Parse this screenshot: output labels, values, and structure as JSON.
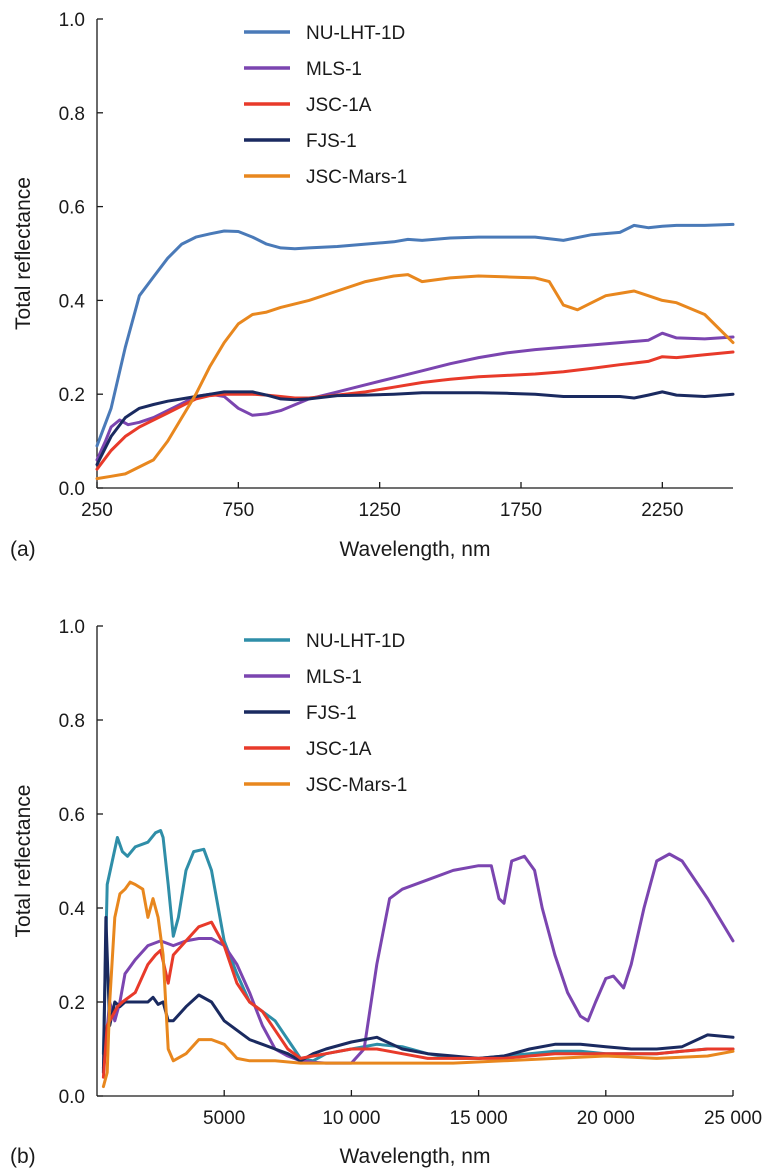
{
  "chart_data": [
    {
      "type": "line",
      "panel_label": "(a)",
      "xlabel": "Wavelength, nm",
      "ylabel": "Total reflectance",
      "xlim": [
        250,
        2500
      ],
      "ylim": [
        0,
        1.0
      ],
      "xticks": [
        250,
        750,
        1250,
        1750,
        2250
      ],
      "xtick_labels": [
        "250",
        "750",
        "1250",
        "1750",
        "2250"
      ],
      "yticks": [
        0,
        0.2,
        0.4,
        0.6,
        0.8,
        1.0
      ],
      "ytick_labels": [
        "0.0",
        "0.2",
        "0.4",
        "0.6",
        "0.8",
        "1.0"
      ],
      "grid": false,
      "legend_position": "top-center",
      "series": [
        {
          "name": "NU-LHT-1D",
          "color": "#4a7ab8",
          "x": [
            250,
            300,
            350,
            400,
            450,
            500,
            550,
            600,
            650,
            700,
            750,
            800,
            850,
            900,
            950,
            1000,
            1100,
            1200,
            1300,
            1350,
            1400,
            1500,
            1600,
            1700,
            1800,
            1900,
            2000,
            2100,
            2150,
            2200,
            2250,
            2300,
            2400,
            2500
          ],
          "y": [
            0.09,
            0.17,
            0.3,
            0.41,
            0.45,
            0.49,
            0.52,
            0.535,
            0.542,
            0.548,
            0.547,
            0.535,
            0.52,
            0.512,
            0.51,
            0.512,
            0.515,
            0.52,
            0.525,
            0.53,
            0.528,
            0.533,
            0.535,
            0.535,
            0.535,
            0.528,
            0.54,
            0.545,
            0.56,
            0.555,
            0.558,
            0.56,
            0.56,
            0.562
          ]
        },
        {
          "name": "MLS-1",
          "color": "#7b45b0",
          "x": [
            250,
            280,
            300,
            330,
            360,
            400,
            450,
            500,
            550,
            600,
            650,
            700,
            750,
            800,
            850,
            900,
            1000,
            1100,
            1200,
            1300,
            1400,
            1500,
            1600,
            1700,
            1800,
            1900,
            2000,
            2100,
            2200,
            2250,
            2300,
            2400,
            2500
          ],
          "y": [
            0.06,
            0.1,
            0.13,
            0.145,
            0.135,
            0.14,
            0.15,
            0.165,
            0.18,
            0.195,
            0.2,
            0.195,
            0.17,
            0.155,
            0.158,
            0.165,
            0.19,
            0.205,
            0.22,
            0.235,
            0.25,
            0.265,
            0.278,
            0.288,
            0.295,
            0.3,
            0.305,
            0.31,
            0.315,
            0.33,
            0.32,
            0.318,
            0.322
          ]
        },
        {
          "name": "JSC-1A",
          "color": "#e83a2a",
          "x": [
            250,
            300,
            350,
            400,
            450,
            500,
            550,
            600,
            650,
            700,
            750,
            800,
            850,
            900,
            950,
            1000,
            1100,
            1200,
            1300,
            1400,
            1500,
            1600,
            1700,
            1800,
            1900,
            2000,
            2100,
            2200,
            2250,
            2300,
            2400,
            2500
          ],
          "y": [
            0.04,
            0.08,
            0.11,
            0.13,
            0.145,
            0.16,
            0.175,
            0.19,
            0.197,
            0.2,
            0.2,
            0.2,
            0.198,
            0.195,
            0.192,
            0.192,
            0.198,
            0.205,
            0.215,
            0.225,
            0.232,
            0.237,
            0.24,
            0.243,
            0.248,
            0.255,
            0.263,
            0.27,
            0.28,
            0.278,
            0.284,
            0.29
          ]
        },
        {
          "name": "FJS-1",
          "color": "#1a2a60",
          "x": [
            250,
            300,
            350,
            400,
            450,
            500,
            550,
            600,
            650,
            700,
            750,
            800,
            850,
            900,
            950,
            1000,
            1100,
            1200,
            1300,
            1400,
            1500,
            1600,
            1700,
            1800,
            1900,
            2000,
            2100,
            2150,
            2200,
            2250,
            2300,
            2400,
            2500
          ],
          "y": [
            0.05,
            0.11,
            0.15,
            0.17,
            0.178,
            0.185,
            0.19,
            0.195,
            0.2,
            0.205,
            0.205,
            0.205,
            0.198,
            0.19,
            0.188,
            0.19,
            0.197,
            0.198,
            0.2,
            0.203,
            0.203,
            0.203,
            0.202,
            0.2,
            0.195,
            0.195,
            0.195,
            0.192,
            0.198,
            0.205,
            0.198,
            0.195,
            0.2
          ]
        },
        {
          "name": "JSC-Mars-1",
          "color": "#e8871e",
          "x": [
            250,
            300,
            350,
            400,
            450,
            500,
            550,
            600,
            650,
            700,
            750,
            800,
            850,
            900,
            1000,
            1100,
            1200,
            1300,
            1350,
            1400,
            1500,
            1600,
            1700,
            1800,
            1850,
            1900,
            1950,
            2000,
            2050,
            2100,
            2150,
            2200,
            2250,
            2300,
            2400,
            2500
          ],
          "y": [
            0.02,
            0.025,
            0.03,
            0.045,
            0.06,
            0.1,
            0.15,
            0.2,
            0.26,
            0.31,
            0.35,
            0.37,
            0.375,
            0.385,
            0.4,
            0.42,
            0.44,
            0.452,
            0.455,
            0.44,
            0.448,
            0.452,
            0.45,
            0.448,
            0.44,
            0.39,
            0.38,
            0.395,
            0.41,
            0.415,
            0.42,
            0.41,
            0.4,
            0.395,
            0.37,
            0.31
          ]
        }
      ]
    },
    {
      "type": "line",
      "panel_label": "(b)",
      "xlabel": "Wavelength, nm",
      "ylabel": "Total reflectance",
      "xlim": [
        0,
        25000
      ],
      "ylim": [
        0,
        1.0
      ],
      "xticks": [
        5000,
        10000,
        15000,
        20000,
        25000
      ],
      "xtick_labels": [
        "5000",
        "10 000",
        "15 000",
        "20 000",
        "25 000"
      ],
      "yticks": [
        0,
        0.2,
        0.4,
        0.6,
        0.8,
        1.0
      ],
      "ytick_labels": [
        "0.0",
        "0.2",
        "0.4",
        "0.6",
        "0.8",
        "1.0"
      ],
      "grid": false,
      "legend_position": "top-center",
      "series": [
        {
          "name": "NU-LHT-1D",
          "color": "#2f8ea8",
          "x": [
            250,
            400,
            600,
            800,
            1000,
            1200,
            1500,
            2000,
            2300,
            2500,
            2600,
            2800,
            3000,
            3200,
            3500,
            3800,
            4200,
            4500,
            5000,
            5500,
            6000,
            6500,
            7000,
            7500,
            8000,
            8500,
            9000,
            10000,
            11000,
            12000,
            13000,
            14000,
            15000,
            16000,
            17000,
            18000,
            19000,
            20000,
            21000,
            22000,
            23000,
            24000,
            25000
          ],
          "y": [
            0.09,
            0.45,
            0.5,
            0.55,
            0.52,
            0.51,
            0.53,
            0.54,
            0.56,
            0.565,
            0.55,
            0.45,
            0.34,
            0.38,
            0.48,
            0.52,
            0.525,
            0.48,
            0.33,
            0.26,
            0.2,
            0.18,
            0.16,
            0.12,
            0.08,
            0.075,
            0.09,
            0.1,
            0.11,
            0.105,
            0.09,
            0.08,
            0.08,
            0.085,
            0.09,
            0.095,
            0.095,
            0.09,
            0.09,
            0.09,
            0.095,
            0.1,
            0.1
          ]
        },
        {
          "name": "MLS-1",
          "color": "#7b45b0",
          "x": [
            250,
            500,
            700,
            900,
            1100,
            1500,
            2000,
            2500,
            3000,
            3500,
            4000,
            4500,
            5000,
            5500,
            6000,
            6500,
            7000,
            7500,
            8000,
            8500,
            9000,
            9500,
            10000,
            10500,
            11000,
            11500,
            12000,
            13000,
            14000,
            15000,
            15500,
            15800,
            16000,
            16300,
            16800,
            17200,
            17500,
            18000,
            18500,
            19000,
            19300,
            19600,
            20000,
            20300,
            20700,
            21000,
            21500,
            22000,
            22500,
            23000,
            24000,
            25000
          ],
          "y": [
            0.06,
            0.2,
            0.16,
            0.2,
            0.26,
            0.29,
            0.32,
            0.33,
            0.32,
            0.33,
            0.335,
            0.335,
            0.32,
            0.28,
            0.22,
            0.15,
            0.1,
            0.085,
            0.075,
            0.072,
            0.07,
            0.07,
            0.07,
            0.1,
            0.28,
            0.42,
            0.44,
            0.46,
            0.48,
            0.49,
            0.49,
            0.42,
            0.41,
            0.5,
            0.51,
            0.48,
            0.4,
            0.3,
            0.22,
            0.17,
            0.16,
            0.2,
            0.25,
            0.255,
            0.23,
            0.28,
            0.4,
            0.5,
            0.515,
            0.5,
            0.42,
            0.33
          ]
        },
        {
          "name": "FJS-1",
          "color": "#1a2a60",
          "x": [
            250,
            350,
            500,
            700,
            900,
            1100,
            1500,
            2000,
            2200,
            2400,
            2600,
            2800,
            3000,
            3500,
            4000,
            4500,
            5000,
            5500,
            6000,
            6500,
            7000,
            7500,
            8000,
            8500,
            9000,
            10000,
            11000,
            12000,
            13000,
            14000,
            15000,
            16000,
            17000,
            18000,
            19000,
            20000,
            21000,
            22000,
            23000,
            24000,
            25000
          ],
          "y": [
            0.05,
            0.38,
            0.15,
            0.2,
            0.19,
            0.2,
            0.2,
            0.2,
            0.21,
            0.195,
            0.2,
            0.16,
            0.16,
            0.19,
            0.215,
            0.2,
            0.16,
            0.14,
            0.12,
            0.11,
            0.1,
            0.09,
            0.075,
            0.09,
            0.1,
            0.115,
            0.125,
            0.1,
            0.09,
            0.085,
            0.08,
            0.085,
            0.1,
            0.11,
            0.11,
            0.105,
            0.1,
            0.1,
            0.105,
            0.13,
            0.125
          ]
        },
        {
          "name": "JSC-1A",
          "color": "#e83a2a",
          "x": [
            250,
            400,
            600,
            800,
            1000,
            1500,
            2000,
            2300,
            2500,
            2800,
            3000,
            3500,
            4000,
            4500,
            5000,
            5500,
            6000,
            6500,
            7000,
            7500,
            8000,
            8500,
            9000,
            10000,
            11000,
            12000,
            13000,
            14000,
            15000,
            16000,
            17000,
            18000,
            19000,
            20000,
            21000,
            22000,
            23000,
            24000,
            25000
          ],
          "y": [
            0.04,
            0.15,
            0.17,
            0.19,
            0.2,
            0.22,
            0.28,
            0.3,
            0.31,
            0.24,
            0.3,
            0.33,
            0.36,
            0.37,
            0.32,
            0.24,
            0.2,
            0.18,
            0.14,
            0.1,
            0.08,
            0.085,
            0.09,
            0.1,
            0.1,
            0.09,
            0.08,
            0.08,
            0.08,
            0.08,
            0.085,
            0.09,
            0.09,
            0.09,
            0.09,
            0.09,
            0.095,
            0.1,
            0.1
          ]
        },
        {
          "name": "JSC-Mars-1",
          "color": "#e8871e",
          "x": [
            250,
            400,
            500,
            700,
            900,
            1100,
            1300,
            1500,
            1800,
            2000,
            2200,
            2400,
            2600,
            2800,
            3000,
            3500,
            4000,
            4500,
            5000,
            5500,
            6000,
            6500,
            7000,
            8000,
            9000,
            10000,
            12000,
            14000,
            16000,
            18000,
            20000,
            22000,
            24000,
            25000
          ],
          "y": [
            0.02,
            0.05,
            0.2,
            0.38,
            0.43,
            0.44,
            0.455,
            0.45,
            0.44,
            0.38,
            0.42,
            0.38,
            0.3,
            0.1,
            0.075,
            0.09,
            0.12,
            0.12,
            0.11,
            0.08,
            0.075,
            0.075,
            0.075,
            0.07,
            0.07,
            0.07,
            0.07,
            0.07,
            0.075,
            0.08,
            0.085,
            0.08,
            0.085,
            0.095
          ]
        }
      ]
    }
  ]
}
